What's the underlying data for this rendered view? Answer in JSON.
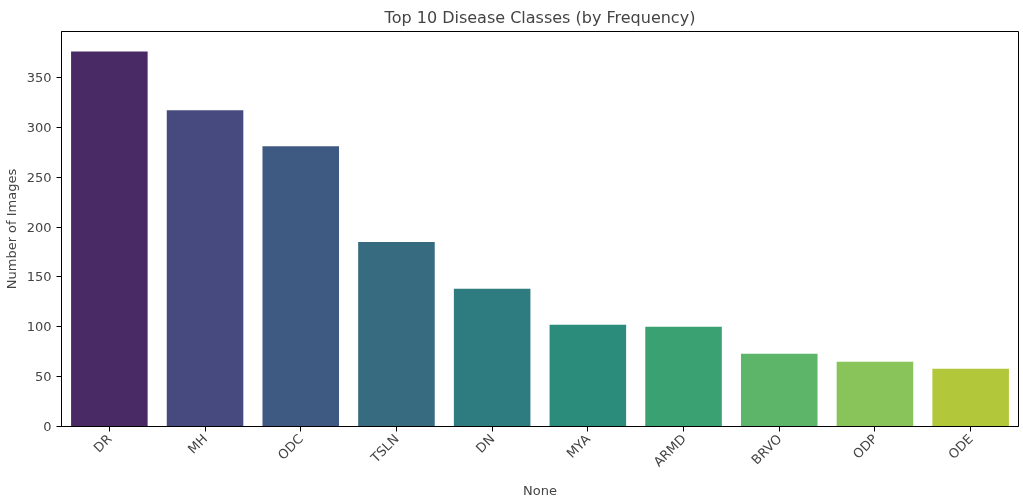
{
  "chart_data": {
    "type": "bar",
    "title": "Top 10 Disease Classes (by Frequency)",
    "xlabel": "None",
    "ylabel": "Number of Images",
    "categories": [
      "DR",
      "MH",
      "ODC",
      "TSLN",
      "DN",
      "MYA",
      "ARMD",
      "BRVO",
      "ODP",
      "ODE"
    ],
    "values": [
      376,
      317,
      281,
      185,
      138,
      102,
      100,
      73,
      65,
      58
    ],
    "colors": [
      "#4a2a64",
      "#464a7e",
      "#3f5a82",
      "#366b80",
      "#2e7c80",
      "#2b8c7c",
      "#3aa172",
      "#5db56a",
      "#88c45a",
      "#b2c83a"
    ],
    "ylim": [
      0,
      396
    ],
    "yticks": [
      0,
      50,
      100,
      150,
      200,
      250,
      300,
      350
    ],
    "grid": false
  }
}
